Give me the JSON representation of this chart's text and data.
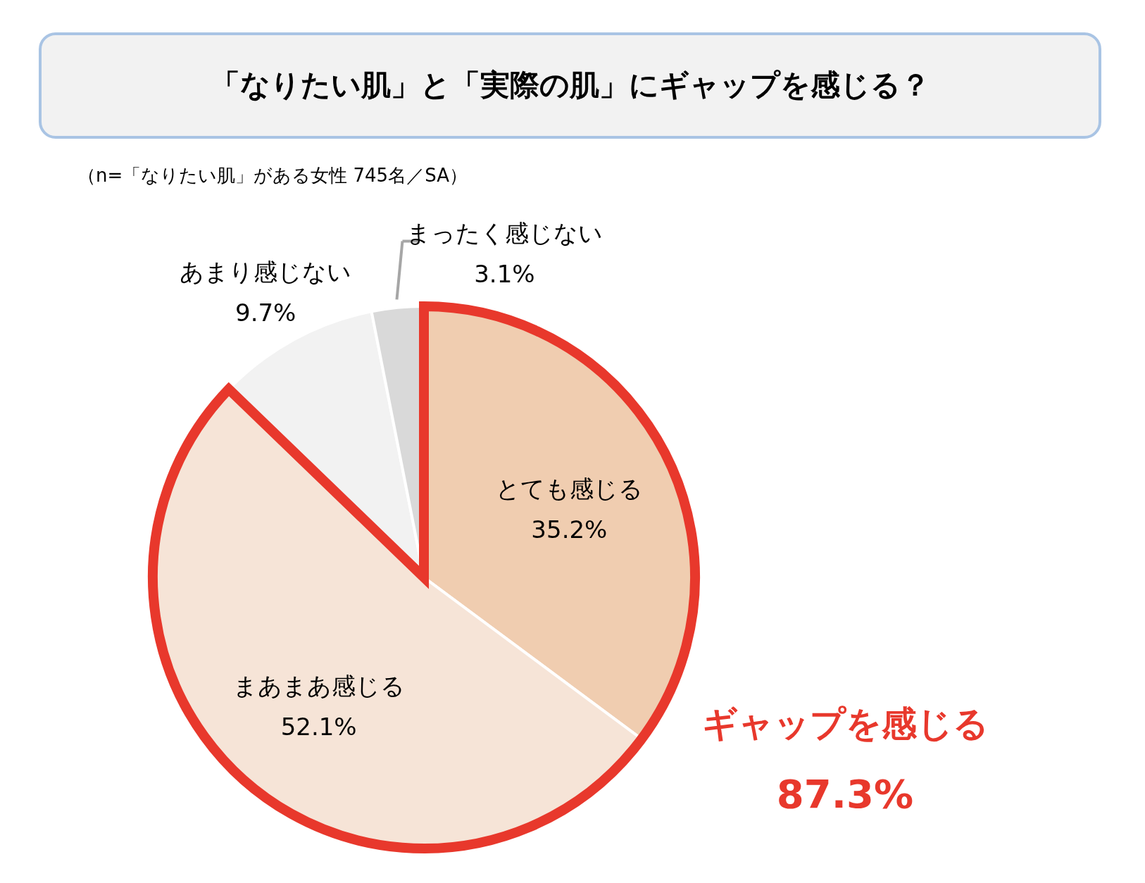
{
  "chart_data": {
    "type": "pie",
    "title": "「なりたい肌」と「実際の肌」にギャップを感じる？",
    "subtitle": "（n=「なりたい肌」がある女性 745名／SA）",
    "categories": [
      "とても感じる",
      "まあまあ感じる",
      "あまり感じない",
      "まったく感じない"
    ],
    "values": [
      35.2,
      52.1,
      9.7,
      3.1
    ],
    "colors": [
      "#f0cdb0",
      "#f6e4d7",
      "#f2f2f2",
      "#d9d9d9"
    ],
    "value_labels": [
      "35.2%",
      "52.1%",
      "9.7%",
      "3.1%"
    ],
    "annotations": [
      "ギャップを感じる",
      "87.3%"
    ]
  }
}
